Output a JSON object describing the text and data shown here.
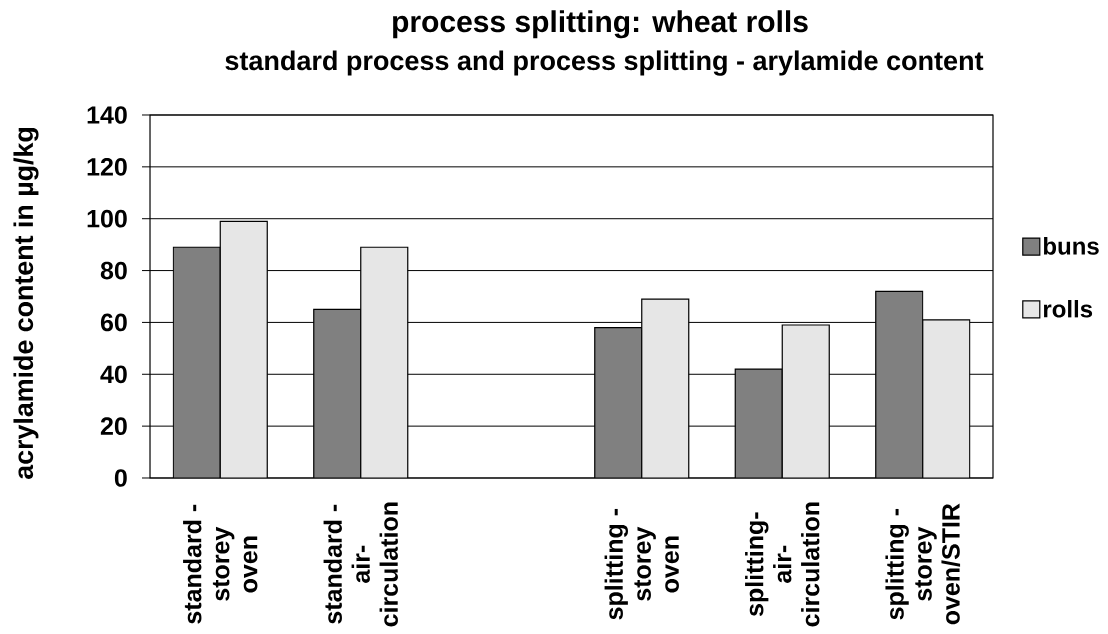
{
  "chart_data": {
    "type": "bar",
    "title": "process splitting:  wheat rolls",
    "subtitle": "standard process and process splitting - arylamide content",
    "ylabel": "acrylamide content in µg/kg",
    "categories": [
      "standard - storey oven",
      "standard - air-circulation",
      null,
      "splitting - storey oven",
      "splitting-air-circulation",
      "splitting - storey oven/STIR"
    ],
    "series": [
      {
        "name": "buns",
        "color": "#808080",
        "values": [
          89,
          65,
          null,
          58,
          42,
          72
        ]
      },
      {
        "name": "rolls",
        "color": "#e6e6e6",
        "values": [
          99,
          89,
          null,
          69,
          59,
          61
        ]
      }
    ],
    "ylim": [
      0,
      140
    ],
    "yticks": [
      0,
      20,
      40,
      60,
      80,
      100,
      120,
      140
    ],
    "grid": "y",
    "legend": "right"
  }
}
